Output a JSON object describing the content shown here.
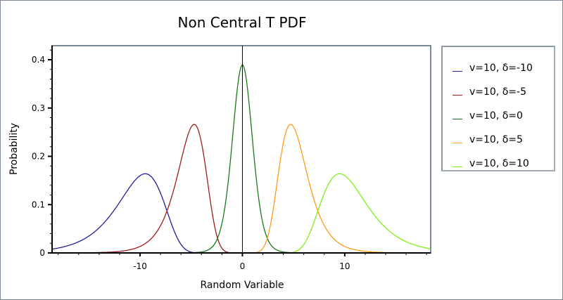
{
  "chart_data": {
    "type": "line",
    "title": "Non Central T PDF",
    "xlabel": "Random Variable",
    "ylabel": "Probability",
    "xlim": [
      -18.6,
      18.4
    ],
    "ylim": [
      0,
      0.43
    ],
    "x_ticks": [
      -10,
      0,
      10
    ],
    "x_tick_labels": [
      "-10",
      "0",
      "10"
    ],
    "y_ticks": [
      0,
      0.1,
      0.2,
      0.3,
      0.4
    ],
    "y_tick_labels": [
      "0",
      "0.1",
      "0.2",
      "0.3",
      "0.4"
    ],
    "grid": false,
    "legend_position": "right",
    "series": [
      {
        "name": "v=10, δ=-10",
        "nu": 10,
        "delta": -10,
        "color": "#1f1f99",
        "peak_x": -9.4,
        "peak_y": 0.163,
        "x": [
          -18,
          -15,
          -12,
          -10,
          -9.4,
          -8,
          -6,
          -4
        ],
        "values": [
          0.008,
          0.04,
          0.12,
          0.16,
          0.163,
          0.135,
          0.035,
          0.002
        ]
      },
      {
        "name": "v=10, δ=-5",
        "nu": 10,
        "delta": -5,
        "color": "#a01c1c",
        "peak_x": -4.7,
        "peak_y": 0.265,
        "x": [
          -12,
          -9,
          -7,
          -5,
          -4.7,
          -4,
          -3,
          -2
        ],
        "values": [
          0.003,
          0.03,
          0.12,
          0.26,
          0.265,
          0.24,
          0.09,
          0.01
        ]
      },
      {
        "name": "v=10, δ=0",
        "nu": 10,
        "delta": 0,
        "color": "#1a7a1a",
        "peak_x": 0,
        "peak_y": 0.389,
        "x": [
          -4,
          -2,
          -1,
          0,
          1,
          2,
          4
        ],
        "values": [
          0.002,
          0.061,
          0.23,
          0.389,
          0.23,
          0.061,
          0.002
        ]
      },
      {
        "name": "v=10, δ=5",
        "nu": 10,
        "delta": 5,
        "color": "#ff9a1a",
        "peak_x": 4.7,
        "peak_y": 0.265,
        "x": [
          2,
          3,
          4,
          4.7,
          5,
          7,
          9,
          12
        ],
        "values": [
          0.01,
          0.09,
          0.24,
          0.265,
          0.26,
          0.12,
          0.03,
          0.003
        ]
      },
      {
        "name": "v=10, δ=10",
        "nu": 10,
        "delta": 10,
        "color": "#80ee1a",
        "peak_x": 9.4,
        "peak_y": 0.163,
        "x": [
          4,
          6,
          8,
          9.4,
          10,
          12,
          15,
          18
        ],
        "values": [
          0.002,
          0.035,
          0.135,
          0.163,
          0.16,
          0.12,
          0.04,
          0.008
        ]
      }
    ]
  }
}
